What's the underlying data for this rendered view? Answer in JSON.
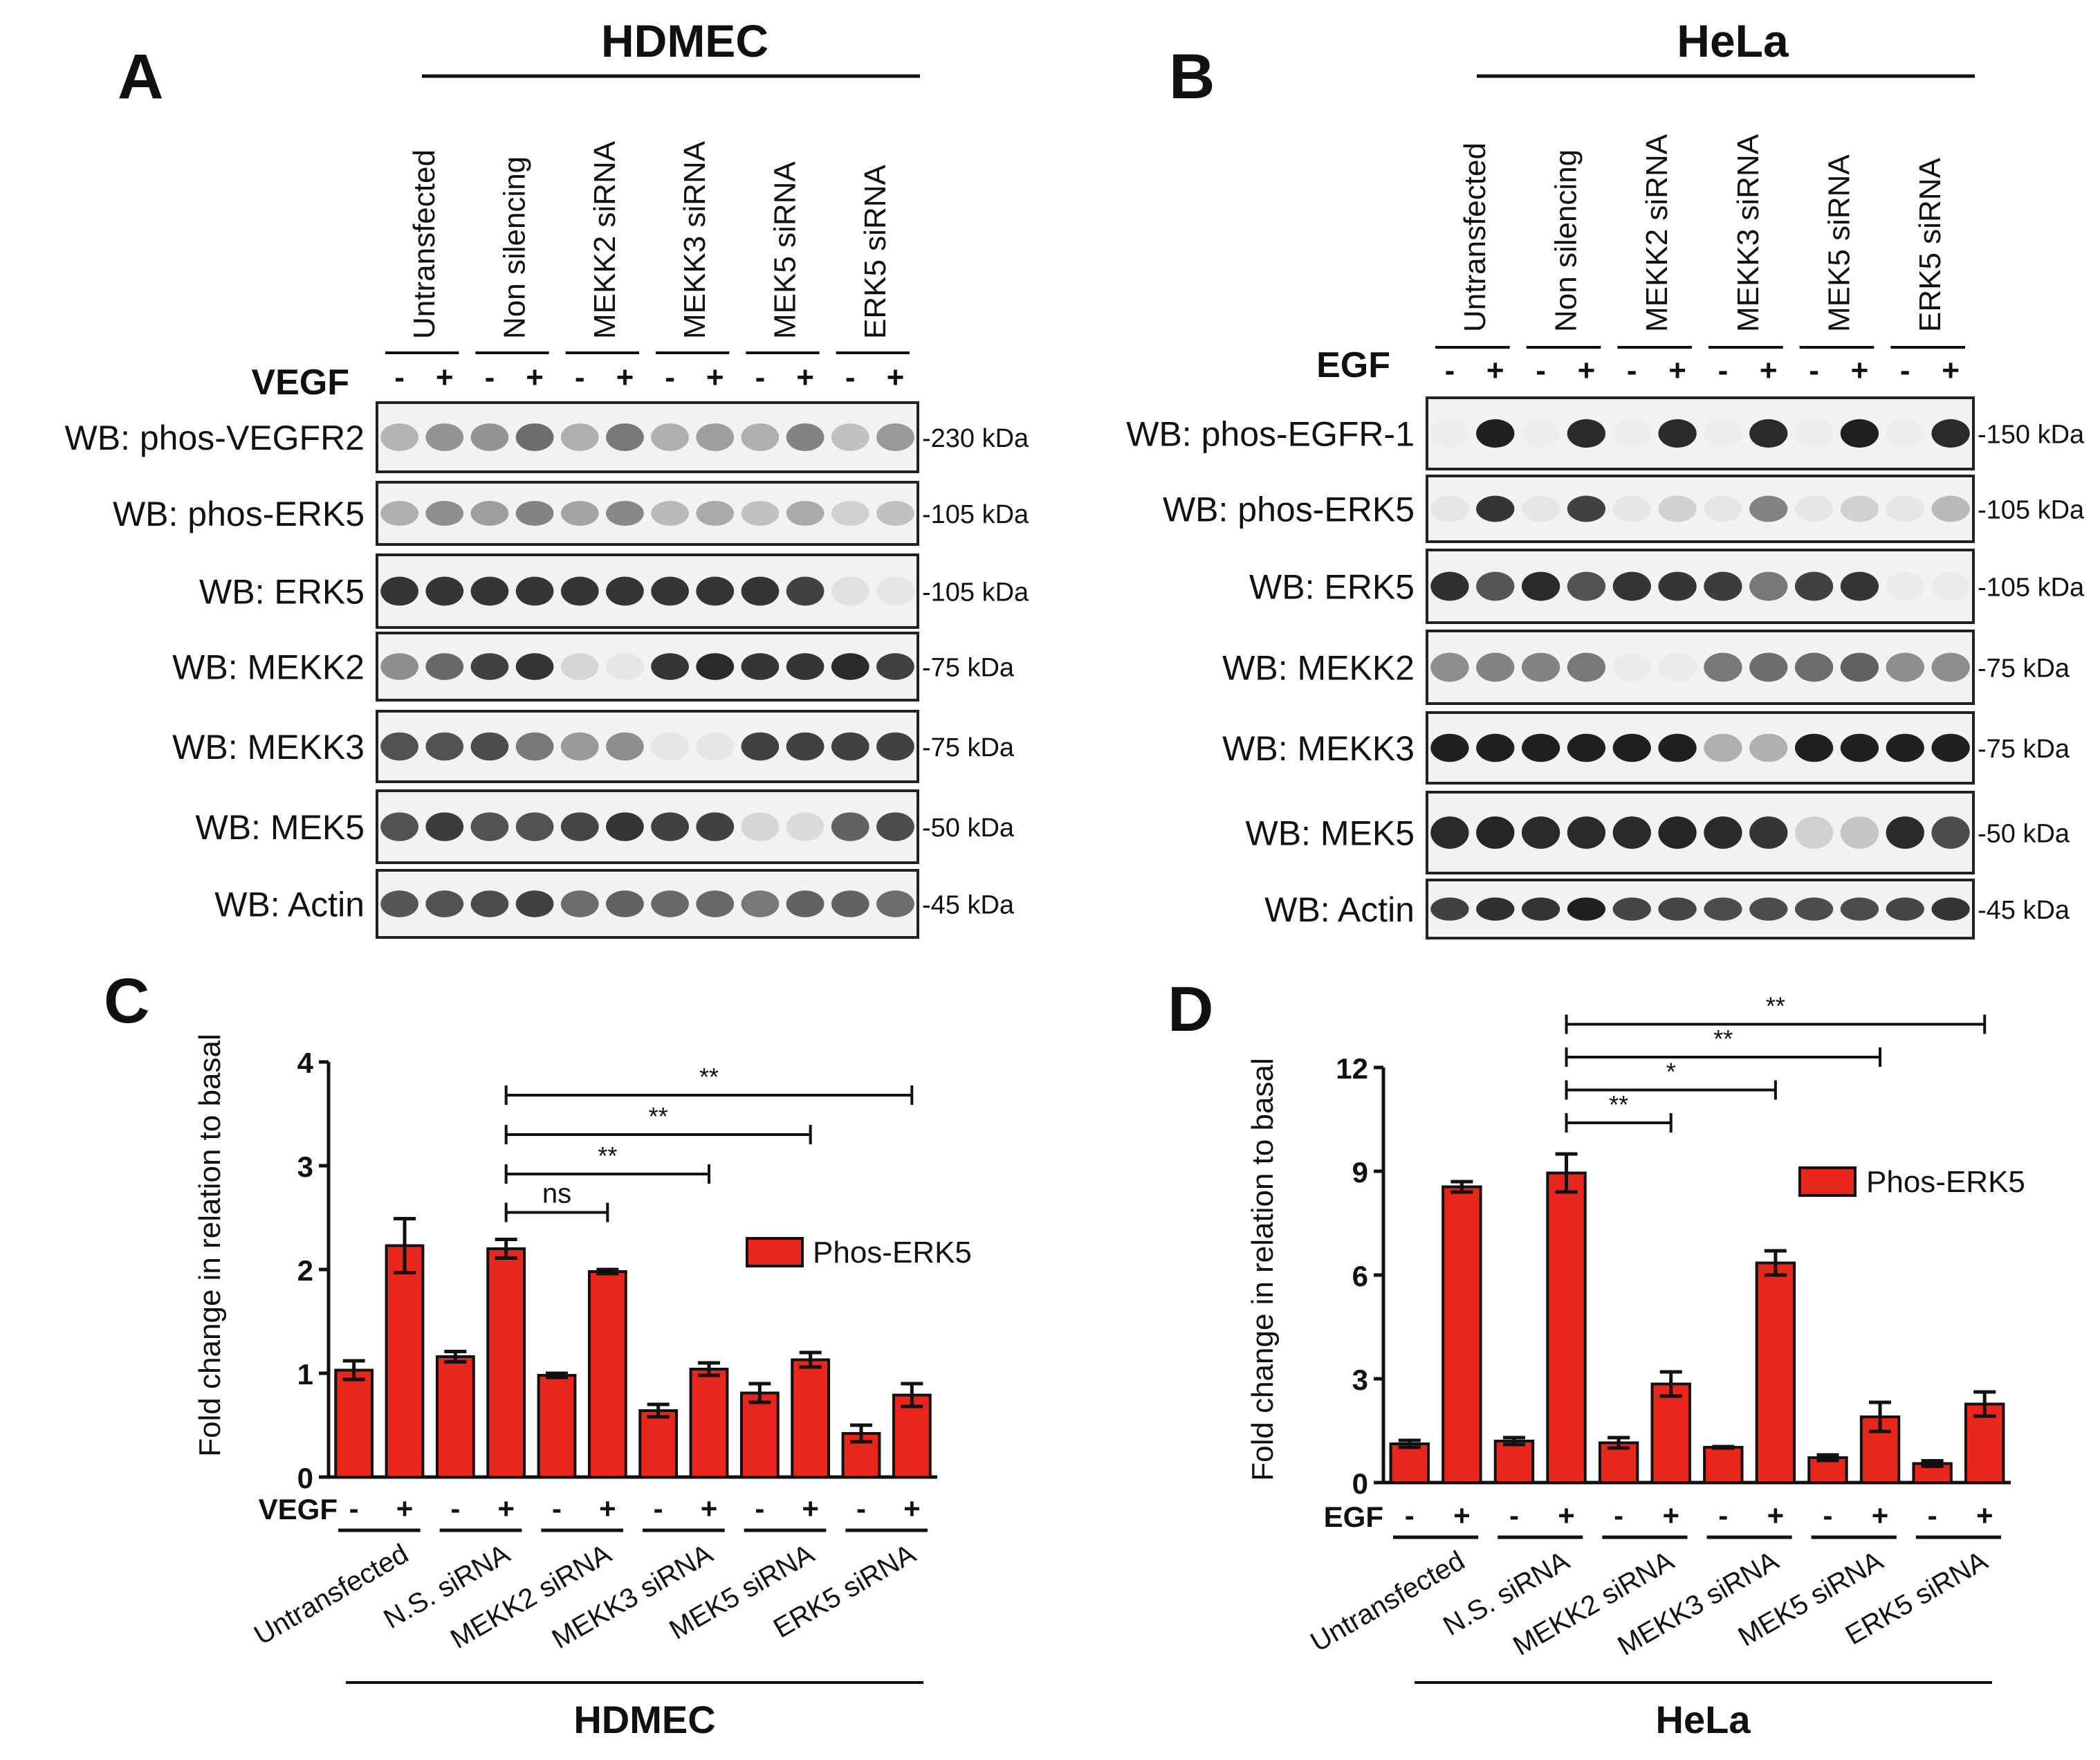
{
  "panels": {
    "A": {
      "letter": "A",
      "cell_title": "HDMEC",
      "stimulus": "VEGF",
      "columns": [
        "Untransfected",
        "Non silencing",
        "MEKK2 siRNA",
        "MEKK3 siRNA",
        "MEK5 siRNA",
        "ERK5 siRNA"
      ],
      "signs": [
        "-",
        "+"
      ],
      "blots": [
        {
          "label": "WB: phos-VEGFR2",
          "kda": "230 kDa",
          "intensity": [
            0.28,
            0.42,
            0.42,
            0.6,
            0.3,
            0.55,
            0.3,
            0.38,
            0.3,
            0.5,
            0.22,
            0.4
          ]
        },
        {
          "label": "WB: phos-ERK5",
          "kda": "105 kDa",
          "intensity": [
            0.3,
            0.45,
            0.38,
            0.5,
            0.35,
            0.48,
            0.25,
            0.32,
            0.22,
            0.32,
            0.15,
            0.22
          ]
        },
        {
          "label": "WB: ERK5",
          "kda": "105 kDa",
          "intensity": [
            0.85,
            0.85,
            0.85,
            0.85,
            0.85,
            0.85,
            0.85,
            0.85,
            0.85,
            0.8,
            0.08,
            0.05
          ]
        },
        {
          "label": "WB: MEKK2",
          "kda": "75 kDa",
          "intensity": [
            0.45,
            0.62,
            0.8,
            0.85,
            0.12,
            0.05,
            0.85,
            0.9,
            0.85,
            0.85,
            0.9,
            0.8
          ]
        },
        {
          "label": "WB: MEKK3",
          "kda": "75 kDa",
          "intensity": [
            0.72,
            0.72,
            0.75,
            0.55,
            0.4,
            0.45,
            0.05,
            0.05,
            0.8,
            0.8,
            0.8,
            0.8
          ]
        },
        {
          "label": "WB: MEK5",
          "kda": "50 kDa",
          "intensity": [
            0.72,
            0.82,
            0.72,
            0.72,
            0.78,
            0.85,
            0.8,
            0.8,
            0.12,
            0.1,
            0.65,
            0.75
          ]
        },
        {
          "label": "WB: Actin",
          "kda": "45 kDa",
          "intensity": [
            0.7,
            0.72,
            0.75,
            0.8,
            0.6,
            0.65,
            0.62,
            0.62,
            0.55,
            0.65,
            0.65,
            0.6
          ]
        }
      ]
    },
    "B": {
      "letter": "B",
      "cell_title": "HeLa",
      "stimulus": "EGF",
      "columns": [
        "Untransfected",
        "Non silencing",
        "MEKK2 siRNA",
        "MEKK3 siRNA",
        "MEK5 siRNA",
        "ERK5 siRNA"
      ],
      "signs": [
        "-",
        "+"
      ],
      "blots": [
        {
          "label": "WB: phos-EGFR-1",
          "kda": "150 kDa",
          "intensity": [
            0.02,
            0.95,
            0.02,
            0.9,
            0.02,
            0.9,
            0.02,
            0.9,
            0.02,
            0.95,
            0.02,
            0.9
          ]
        },
        {
          "label": "WB: phos-ERK5",
          "kda": "105 kDa",
          "intensity": [
            0.05,
            0.85,
            0.05,
            0.8,
            0.05,
            0.15,
            0.05,
            0.5,
            0.05,
            0.15,
            0.05,
            0.25
          ]
        },
        {
          "label": "WB: ERK5",
          "kda": "105 kDa",
          "intensity": [
            0.88,
            0.7,
            0.9,
            0.72,
            0.85,
            0.85,
            0.82,
            0.55,
            0.8,
            0.85,
            0.03,
            0.03
          ]
        },
        {
          "label": "WB: MEKK2",
          "kda": "75 kDa",
          "intensity": [
            0.45,
            0.5,
            0.5,
            0.55,
            0.03,
            0.03,
            0.55,
            0.6,
            0.6,
            0.65,
            0.45,
            0.45
          ]
        },
        {
          "label": "WB: MEKK3",
          "kda": "75 kDa",
          "intensity": [
            0.95,
            0.95,
            0.95,
            0.95,
            0.95,
            0.95,
            0.3,
            0.3,
            0.95,
            0.95,
            0.95,
            0.95
          ]
        },
        {
          "label": "WB: MEK5",
          "kda": "50 kDa",
          "intensity": [
            0.9,
            0.92,
            0.9,
            0.9,
            0.9,
            0.92,
            0.9,
            0.85,
            0.15,
            0.2,
            0.9,
            0.75
          ]
        },
        {
          "label": "WB: Actin",
          "kda": "45 kDa",
          "intensity": [
            0.8,
            0.88,
            0.85,
            0.95,
            0.78,
            0.78,
            0.75,
            0.75,
            0.75,
            0.75,
            0.78,
            0.85
          ]
        }
      ]
    },
    "C": {
      "letter": "C",
      "cell_title": "HDMEC",
      "stimulus": "VEGF"
    },
    "D": {
      "letter": "D",
      "cell_title": "HeLa",
      "stimulus": "EGF"
    }
  },
  "chart_data": [
    {
      "id": "C",
      "type": "bar",
      "title": "",
      "ylabel": "Fold change in relation to basal",
      "xlabel": "HDMEC",
      "ylim": [
        0,
        4
      ],
      "yticks": [
        "0",
        "1",
        "2",
        "3",
        "4"
      ],
      "legend": "Phos-ERK5",
      "bar_color": "#e8261c",
      "groups": [
        "Untransfected",
        "N.S. siRNA",
        "MEKK2 siRNA",
        "MEKK3 siRNA",
        "MEK5 siRNA",
        "ERK5 siRNA"
      ],
      "signs": [
        "-",
        "+"
      ],
      "values": [
        1.03,
        2.23,
        1.16,
        2.2,
        0.98,
        1.98,
        0.64,
        1.04,
        0.81,
        1.13,
        0.42,
        0.79
      ],
      "errors": [
        0.09,
        0.26,
        0.05,
        0.09,
        0.02,
        0.02,
        0.06,
        0.06,
        0.09,
        0.07,
        0.08,
        0.11
      ],
      "significance": [
        {
          "label": "ns",
          "from": 3,
          "to": 5,
          "level": 2.55
        },
        {
          "label": "**",
          "from": 3,
          "to": 7,
          "level": 2.92
        },
        {
          "label": "**",
          "from": 3,
          "to": 9,
          "level": 3.3
        },
        {
          "label": "**",
          "from": 3,
          "to": 11,
          "level": 3.68
        }
      ]
    },
    {
      "id": "D",
      "type": "bar",
      "title": "",
      "ylabel": "Fold change in relation to basal",
      "xlabel": "HeLa",
      "ylim": [
        0,
        12
      ],
      "yticks": [
        "0",
        "3",
        "6",
        "9",
        "12"
      ],
      "legend": "Phos-ERK5",
      "bar_color": "#e8261c",
      "groups": [
        "Untransfected",
        "N.S. siRNA",
        "MEKK2 siRNA",
        "MEKK3 siRNA",
        "MEK5 siRNA",
        "ERK5 siRNA"
      ],
      "signs": [
        "-",
        "+"
      ],
      "values": [
        1.12,
        8.55,
        1.2,
        8.95,
        1.15,
        2.85,
        1.02,
        6.35,
        0.72,
        1.9,
        0.55,
        2.27
      ],
      "errors": [
        0.1,
        0.15,
        0.1,
        0.55,
        0.15,
        0.35,
        0.02,
        0.35,
        0.08,
        0.42,
        0.08,
        0.35
      ],
      "significance": [
        {
          "label": "**",
          "from": 3,
          "to": 5,
          "level": 10.4
        },
        {
          "label": "*",
          "from": 3,
          "to": 7,
          "level": 11.35
        },
        {
          "label": "**",
          "from": 3,
          "to": 9,
          "level": 12.3
        },
        {
          "label": "**",
          "from": 3,
          "to": 11,
          "level": 13.25
        }
      ]
    }
  ]
}
